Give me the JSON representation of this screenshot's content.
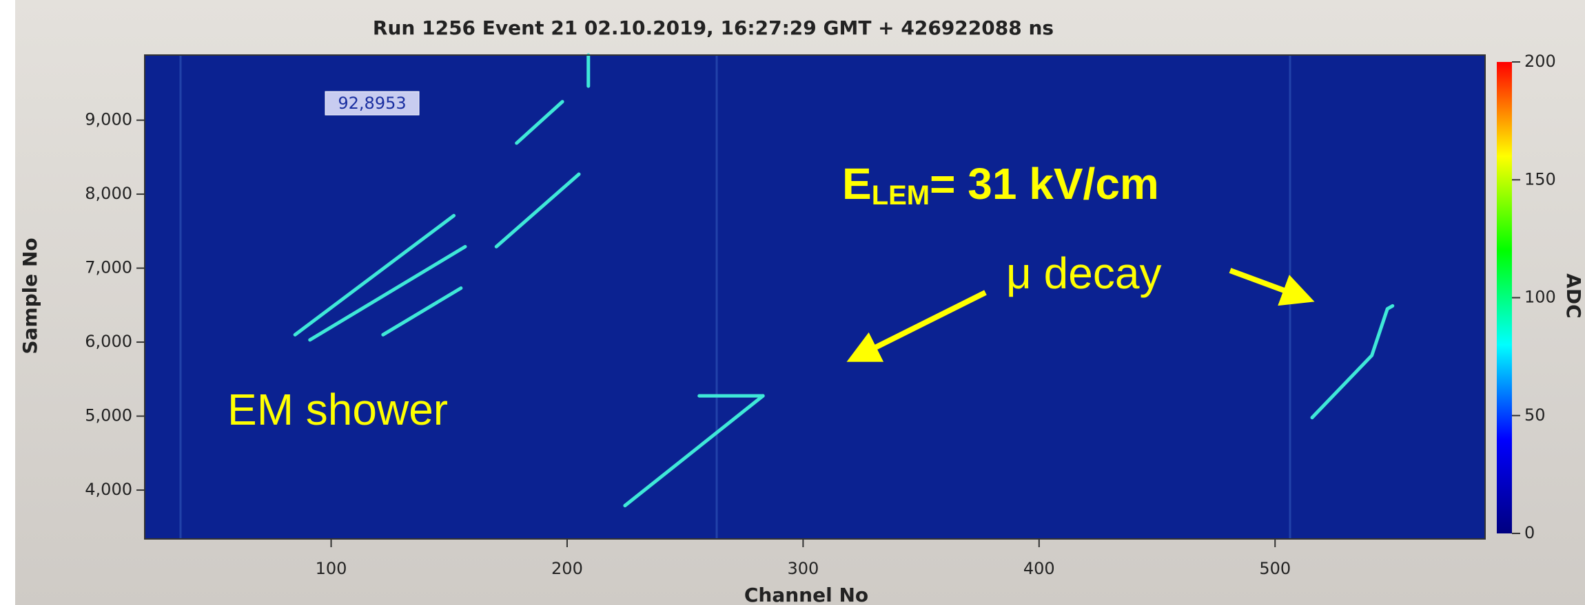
{
  "chart_data": {
    "type": "heatmap",
    "title": "Run 1256 Event 21 02.10.2019, 16:27:29 GMT + 426922088 ns",
    "x_label": "Channel No",
    "y_label": "Sample No",
    "xlim": [
      21,
      589
    ],
    "xticks": [
      100,
      200,
      300,
      400,
      500
    ],
    "ylim": [
      3340,
      9880
    ],
    "yticks": [
      {
        "value": 4000,
        "label": "4,000"
      },
      {
        "value": 5000,
        "label": "5,000"
      },
      {
        "value": 6000,
        "label": "6,000"
      },
      {
        "value": 7000,
        "label": "7,000"
      },
      {
        "value": 8000,
        "label": "8,000"
      },
      {
        "value": 9000,
        "label": "9,000"
      }
    ],
    "background_color": "#0b2291",
    "track_color": "#3fe8d8",
    "tracks": [
      {
        "x": [
          224.5,
          283
        ],
        "y": [
          3790,
          5274
        ]
      },
      {
        "x": [
          256,
          283
        ],
        "y": [
          5274,
          5274
        ]
      },
      {
        "x": [
          515.7,
          541,
          547.6,
          549.8
        ],
        "y": [
          4980,
          5820,
          6450,
          6490
        ]
      },
      {
        "x": [
          209,
          209
        ],
        "y": [
          9880,
          9460
        ]
      },
      {
        "x": [
          84.7,
          152
        ],
        "y": [
          6100,
          7710
        ]
      },
      {
        "x": [
          91,
          156.8
        ],
        "y": [
          6030,
          7290
        ]
      },
      {
        "x": [
          122,
          155
        ],
        "y": [
          6100,
          6730
        ]
      },
      {
        "x": [
          170,
          205
        ],
        "y": [
          7290,
          8270
        ]
      },
      {
        "x": [
          178.6,
          198
        ],
        "y": [
          8690,
          9250
        ]
      }
    ],
    "colorbar": {
      "label": "ADC",
      "lim": [
        0,
        200
      ],
      "ticks": [
        0,
        50,
        100,
        150,
        200
      ],
      "colorscale": [
        "#00007f",
        "#0000ff",
        "#00ffff",
        "#00ff00",
        "#ffff00",
        "#ff0000"
      ]
    },
    "annotations": {
      "hover_value": "92,8953",
      "em_label": "EM shower",
      "field_label": {
        "symbol": "E",
        "subscript": "LEM",
        "text": "= 31 kV/cm"
      },
      "decay_label": "μ decay"
    }
  }
}
